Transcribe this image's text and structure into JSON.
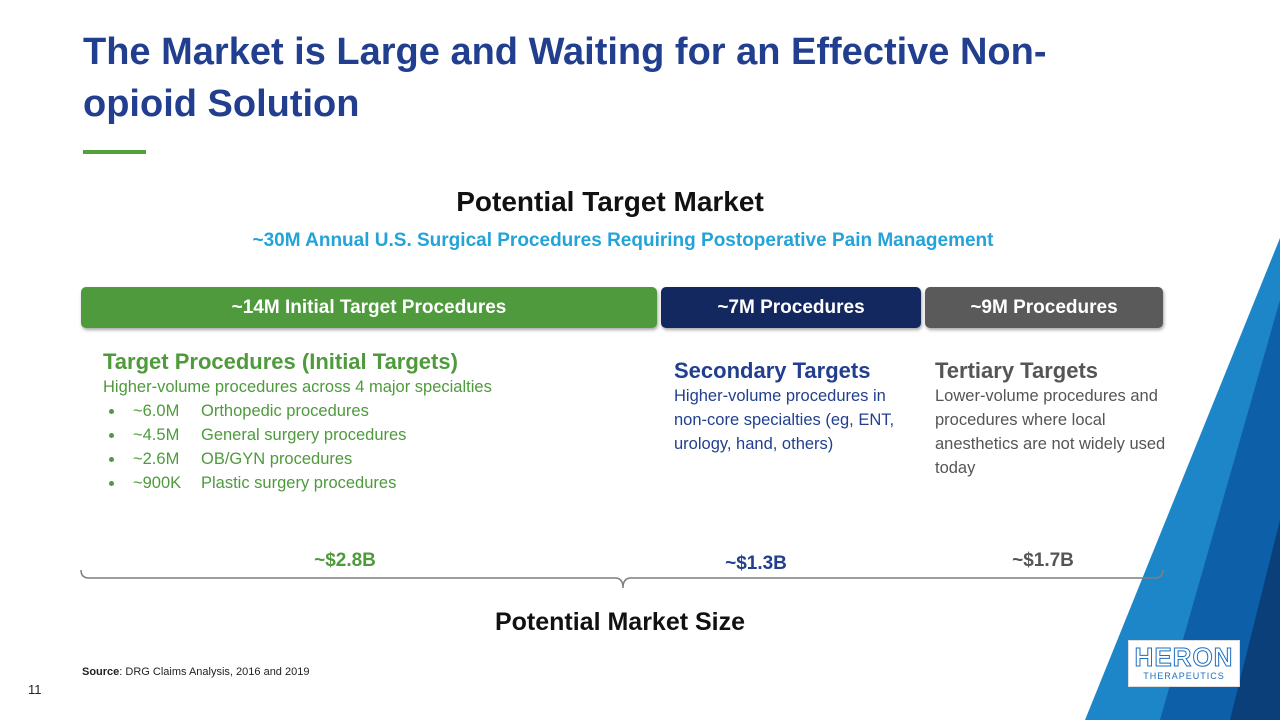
{
  "title": "The Market is Large and Waiting for an Effective Non-opioid Solution",
  "heading": "Potential Target Market",
  "subheading": "~30M Annual U.S. Surgical Procedures Requiring Postoperative Pain Management",
  "segments": [
    {
      "label": "~14M Initial Target Procedures",
      "heading": "Target Procedures (Initial Targets)",
      "description": "Higher-volume procedures across 4 major specialties",
      "items": [
        {
          "amount": "~6.0M",
          "label": "Orthopedic procedures"
        },
        {
          "amount": "~4.5M",
          "label": "General surgery procedures"
        },
        {
          "amount": "~2.6M",
          "label": "OB/GYN procedures"
        },
        {
          "amount": "~900K",
          "label": "Plastic surgery procedures"
        }
      ],
      "market_size": "~$2.8B"
    },
    {
      "label": "~7M Procedures",
      "heading": "Secondary Targets",
      "description": "Higher-volume procedures in non-core specialties (eg, ENT, urology, hand, others)",
      "market_size": "~$1.3B"
    },
    {
      "label": "~9M Procedures",
      "heading": "Tertiary Targets",
      "description": "Lower-volume procedures and procedures where local anesthetics are not widely used today",
      "market_size": "~$1.7B"
    }
  ],
  "footer_label": "Potential Market Size",
  "source": {
    "label": "Source",
    "text": ": DRG Claims Analysis, 2016 and 2019"
  },
  "page_number": "11",
  "logo": {
    "name": "HERON",
    "tagline": "THERAPEUTICS"
  }
}
